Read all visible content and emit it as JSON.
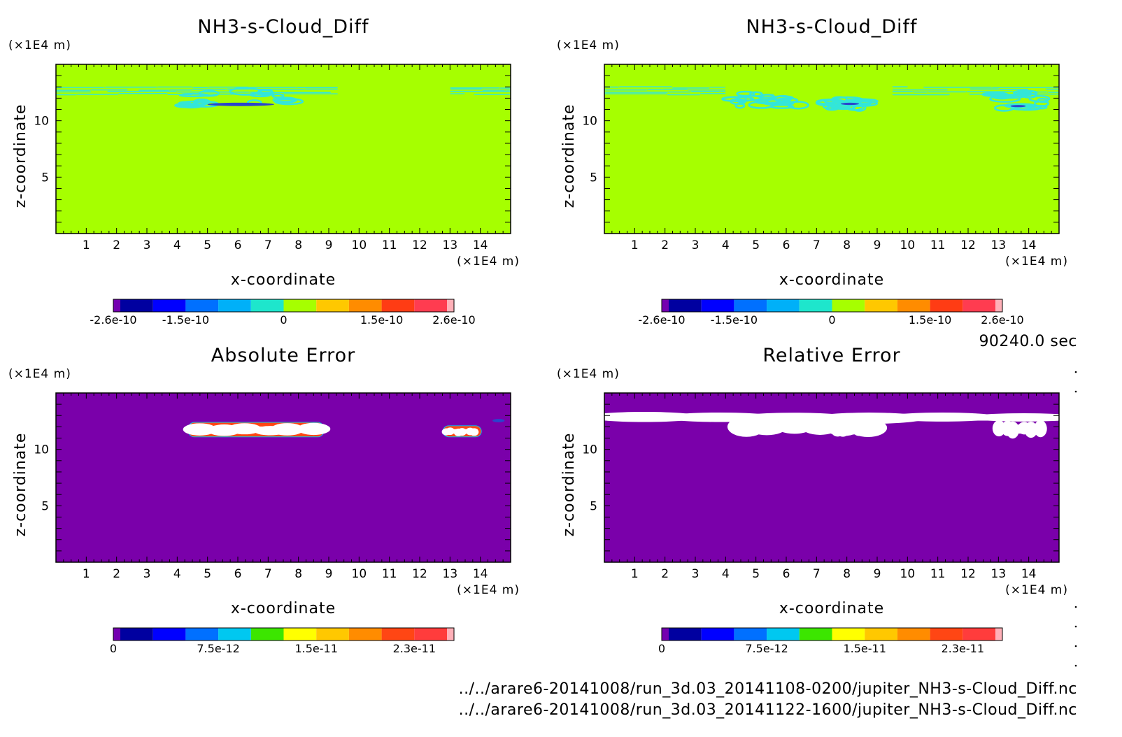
{
  "colors": {
    "background": "#ffffff",
    "diff_field": "#a6ff00",
    "diff_structure": "#33e6d9",
    "diff_core": "#2a44cc",
    "error_background": "#7a00aa",
    "blank": "#ffffff",
    "diff_colorbar": [
      "#7400b0",
      "#0000a0",
      "#0000ff",
      "#0070ff",
      "#00b0f8",
      "#1ee6cc",
      "#a6ff00",
      "#ffc800",
      "#ff8c00",
      "#ff3c14",
      "#ff3c50",
      "#ffb0b8"
    ],
    "error_colorbar": [
      "#7400b0",
      "#0000a0",
      "#0000ff",
      "#0070ff",
      "#00c8f0",
      "#3ce600",
      "#ffff00",
      "#ffc800",
      "#ff8c00",
      "#ff4614",
      "#ff3c3c",
      "#ffb0b8"
    ]
  },
  "info": {
    "time": "90240.0 sec",
    "file1": "../../arare6-20141008/run_3d.03_20141108-0200/jupiter_NH3-s-Cloud_Diff.nc",
    "file2": "../../arare6-20141008/run_3d.03_20141122-1600/jupiter_NH3-s-Cloud_Diff.nc"
  },
  "chart_data": [
    {
      "type": "heatmap",
      "title": "NH3-s-Cloud_Diff",
      "xlabel": "x-coordinate",
      "ylabel": "z-coordinate",
      "x_unit": "(×1E4 m)",
      "y_unit": "(×1E4 m)",
      "xlim": [
        0,
        15
      ],
      "ylim": [
        0,
        15
      ],
      "x_ticks": [
        "1",
        "2",
        "3",
        "4",
        "5",
        "6",
        "7",
        "8",
        "9",
        "10",
        "11",
        "12",
        "13",
        "14"
      ],
      "y_ticks": [
        "5",
        "10"
      ],
      "colorbar_labels": [
        "-2.6e-10",
        "-1.5e-10",
        "0",
        "1.5e-10",
        "2.6e-10"
      ],
      "background": "diff_field",
      "regions": [
        {
          "x": [
            0.0,
            9.3
          ],
          "z": [
            12.2,
            13.0
          ],
          "color": "diff_structure",
          "style": "bands"
        },
        {
          "x": [
            13.0,
            15.0
          ],
          "z": [
            12.2,
            13.0
          ],
          "color": "diff_structure",
          "style": "bands"
        },
        {
          "x": [
            4.2,
            7.8
          ],
          "z": [
            11.2,
            12.6
          ],
          "color": "diff_structure",
          "style": "cluster"
        },
        {
          "x": [
            5.0,
            7.2
          ],
          "z": [
            11.3,
            11.6
          ],
          "color": "diff_core",
          "style": "core"
        }
      ]
    },
    {
      "type": "heatmap",
      "title": "NH3-s-Cloud_Diff",
      "xlabel": "x-coordinate",
      "ylabel": "z-coordinate",
      "x_unit": "(×1E4 m)",
      "y_unit": "(×1E4 m)",
      "xlim": [
        0,
        15
      ],
      "ylim": [
        0,
        15
      ],
      "x_ticks": [
        "1",
        "2",
        "3",
        "4",
        "5",
        "6",
        "7",
        "8",
        "9",
        "10",
        "11",
        "12",
        "13",
        "14"
      ],
      "y_ticks": [
        "5",
        "10"
      ],
      "colorbar_labels": [
        "-2.6e-10",
        "-1.5e-10",
        "0",
        "1.5e-10",
        "2.6e-10"
      ],
      "background": "diff_field",
      "regions": [
        {
          "x": [
            0.0,
            4.0
          ],
          "z": [
            12.2,
            13.0
          ],
          "color": "diff_structure",
          "style": "bands"
        },
        {
          "x": [
            9.5,
            15.0
          ],
          "z": [
            12.2,
            13.0
          ],
          "color": "diff_structure",
          "style": "bands"
        },
        {
          "x": [
            4.3,
            6.8
          ],
          "z": [
            11.2,
            12.4
          ],
          "color": "diff_structure",
          "style": "cluster"
        },
        {
          "x": [
            7.4,
            8.6
          ],
          "z": [
            11.1,
            11.9
          ],
          "color": "diff_structure",
          "style": "cluster"
        },
        {
          "x": [
            12.8,
            14.5
          ],
          "z": [
            11.1,
            12.5
          ],
          "color": "diff_structure",
          "style": "cluster"
        },
        {
          "x": [
            7.8,
            8.4
          ],
          "z": [
            11.4,
            11.6
          ],
          "color": "diff_core",
          "style": "core"
        },
        {
          "x": [
            13.4,
            13.9
          ],
          "z": [
            11.2,
            11.4
          ],
          "color": "diff_core",
          "style": "core"
        }
      ]
    },
    {
      "type": "heatmap",
      "title": "Absolute Error",
      "xlabel": "x-coordinate",
      "ylabel": "z-coordinate",
      "x_unit": "(×1E4 m)",
      "y_unit": "(×1E4 m)",
      "xlim": [
        0,
        15
      ],
      "ylim": [
        0,
        15
      ],
      "x_ticks": [
        "1",
        "2",
        "3",
        "4",
        "5",
        "6",
        "7",
        "8",
        "9",
        "10",
        "11",
        "12",
        "13",
        "14"
      ],
      "y_ticks": [
        "5",
        "10"
      ],
      "colorbar_labels": [
        "0",
        "7.5e-12",
        "1.5e-11",
        "2.3e-11"
      ],
      "background": "error_background",
      "regions": [
        {
          "x": [
            4.4,
            8.8
          ],
          "z": [
            11.2,
            12.3
          ],
          "color": "blank",
          "style": "blob"
        },
        {
          "x": [
            12.8,
            14.0
          ],
          "z": [
            11.2,
            12.0
          ],
          "color": "blank",
          "style": "blob"
        },
        {
          "x": [
            14.4,
            14.8
          ],
          "z": [
            12.4,
            12.7
          ],
          "color": "diff_core",
          "style": "core"
        }
      ]
    },
    {
      "type": "heatmap",
      "title": "Relative Error",
      "xlabel": "x-coordinate",
      "ylabel": "z-coordinate",
      "x_unit": "(×1E4 m)",
      "y_unit": "(×1E4 m)",
      "xlim": [
        0,
        15
      ],
      "ylim": [
        0,
        15
      ],
      "x_ticks": [
        "1",
        "2",
        "3",
        "4",
        "5",
        "6",
        "7",
        "8",
        "9",
        "10",
        "11",
        "12",
        "13",
        "14"
      ],
      "y_ticks": [
        "5",
        "10"
      ],
      "colorbar_labels": [
        "0",
        "7.5e-12",
        "1.5e-11",
        "2.3e-11"
      ],
      "background": "error_background",
      "regions": [
        {
          "x": [
            0.0,
            15.0
          ],
          "z": [
            12.3,
            13.3
          ],
          "color": "blank",
          "style": "blob"
        },
        {
          "x": [
            4.2,
            9.2
          ],
          "z": [
            11.1,
            12.9
          ],
          "color": "blank",
          "style": "blob"
        },
        {
          "x": [
            7.5,
            9.0
          ],
          "z": [
            11.1,
            12.0
          ],
          "color": "blank",
          "style": "blob"
        },
        {
          "x": [
            12.8,
            14.5
          ],
          "z": [
            11.0,
            12.6
          ],
          "color": "blank",
          "style": "blob"
        }
      ]
    }
  ]
}
